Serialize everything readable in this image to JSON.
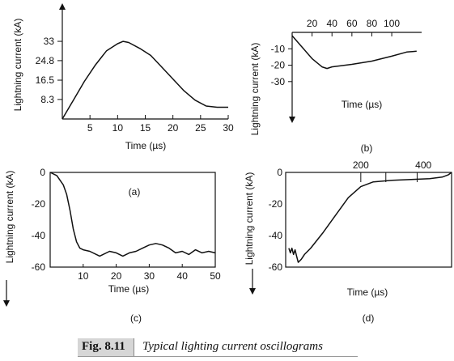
{
  "caption": {
    "label": "Fig. 8.11",
    "text": "Typical lighting current oscillograms"
  },
  "chart_data": [
    {
      "panel": "(a)",
      "type": "line",
      "xlabel": "Time (µs)",
      "ylabel": "Lightning current (kA)",
      "xticks": [
        "5",
        "10",
        "15",
        "20",
        "25",
        "30"
      ],
      "yticks": [
        "33",
        "24.8",
        "16.5",
        "8.3"
      ],
      "xlim": [
        0,
        30
      ],
      "ylim": [
        0,
        43
      ],
      "x": [
        0,
        2,
        4,
        6,
        8,
        10,
        11,
        12,
        14,
        16,
        18,
        20,
        22,
        24,
        26,
        28,
        30
      ],
      "y": [
        0,
        8,
        16,
        23,
        29,
        32,
        33,
        32.5,
        30,
        27,
        22,
        17,
        12,
        8,
        5.5,
        5,
        5
      ]
    },
    {
      "panel": "(b)",
      "type": "line",
      "xlabel": "Time (µs)",
      "ylabel": "Lightning current (kA)",
      "xticks": [
        "20",
        "40",
        "60",
        "80",
        "100"
      ],
      "yticks": [
        "-10",
        "-20",
        "-30"
      ],
      "xlim": [
        0,
        130
      ],
      "ylim": [
        -37,
        0
      ],
      "x": [
        0,
        10,
        20,
        30,
        35,
        40,
        60,
        80,
        100,
        115,
        125
      ],
      "y": [
        -2,
        -9,
        -16,
        -21,
        -22,
        -21,
        -19.5,
        -17.5,
        -14.5,
        -12,
        -11.5
      ]
    },
    {
      "panel": "(c)",
      "type": "line",
      "xlabel": "Time (µs)",
      "ylabel": "Lightning current (kA)",
      "xticks": [
        "10",
        "20",
        "30",
        "40",
        "50"
      ],
      "yticks": [
        "0",
        "-20",
        "-40",
        "-60"
      ],
      "xlim": [
        0,
        50
      ],
      "ylim": [
        -60,
        0
      ],
      "x": [
        0,
        2,
        4,
        5,
        6,
        7,
        8,
        9,
        10,
        12,
        14,
        15,
        16,
        18,
        20,
        22,
        24,
        26,
        28,
        30,
        32,
        34,
        36,
        38,
        40,
        42,
        44,
        46,
        48,
        50
      ],
      "y": [
        0,
        -2,
        -8,
        -14,
        -24,
        -36,
        -44,
        -48,
        -49,
        -50,
        -52,
        -53,
        -52,
        -50,
        -51,
        -53,
        -51,
        -50,
        -48,
        -46,
        -45,
        -46,
        -48,
        -51,
        -50,
        -52,
        -49,
        -51,
        -50,
        -51
      ]
    },
    {
      "panel": "(d)",
      "type": "line",
      "xlabel": "Time (µs)",
      "ylabel": "Lightning current (kA)",
      "xticks": [
        "200",
        "400"
      ],
      "yticks": [
        "0",
        "-20",
        "-40",
        "-60"
      ],
      "xlim": [
        -40,
        490
      ],
      "ylim": [
        -60,
        0
      ],
      "x": [
        -30,
        -25,
        -20,
        -15,
        -10,
        -5,
        0,
        10,
        20,
        40,
        80,
        120,
        160,
        200,
        240,
        300,
        360,
        420,
        460,
        480,
        490
      ],
      "y": [
        -48,
        -51,
        -48,
        -52,
        -49,
        -53,
        -57,
        -55,
        -52,
        -48,
        -38,
        -27,
        -16,
        -9,
        -6,
        -5,
        -4.5,
        -4,
        -3,
        -1.5,
        0
      ]
    }
  ]
}
